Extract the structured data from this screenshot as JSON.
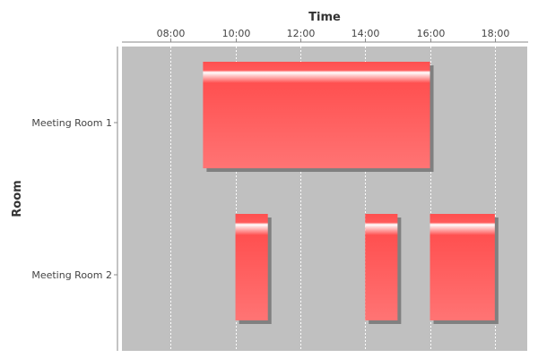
{
  "chart_data": {
    "type": "gantt",
    "xlabel": "Time",
    "ylabel": "Room",
    "x_axis_position": "top",
    "xlim": [
      "06:30",
      "19:00"
    ],
    "x_ticks": [
      "08:00",
      "10:00",
      "12:00",
      "14:00",
      "16:00",
      "18:00"
    ],
    "grid": true,
    "legend": "none",
    "categories": [
      "Meeting Room 1",
      "Meeting Room 2"
    ],
    "tasks": [
      {
        "category": "Meeting Room 1",
        "start": "09:00",
        "end": "16:00"
      },
      {
        "category": "Meeting Room 2",
        "start": "10:00",
        "end": "11:00"
      },
      {
        "category": "Meeting Room 2",
        "start": "14:00",
        "end": "15:00"
      },
      {
        "category": "Meeting Room 2",
        "start": "16:00",
        "end": "18:00"
      }
    ],
    "colors": {
      "plot_background": "#c0c0c0",
      "bar": "#ff5555",
      "bar_shadow": "#808080",
      "grid": "#ffffff"
    }
  }
}
